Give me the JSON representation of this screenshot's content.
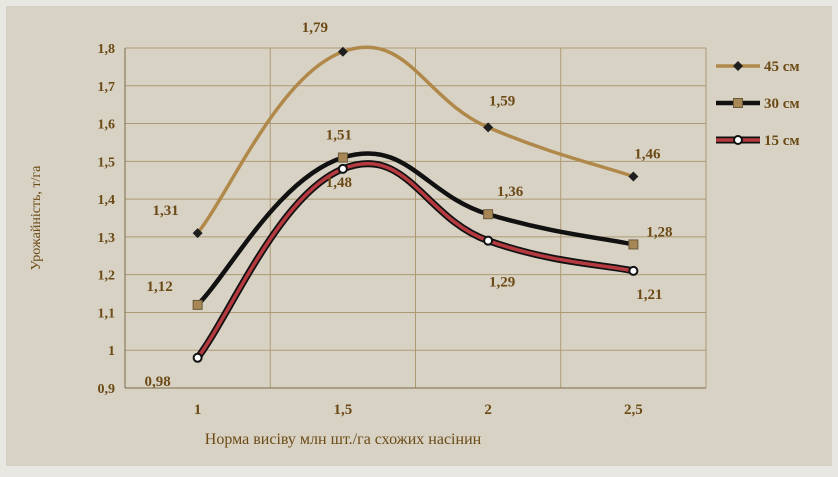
{
  "colors": {
    "plot_bg": "#d8d2c4",
    "page_bg": "#e9e7e2",
    "text": "#6b4a16",
    "grid": "#ad9a74",
    "axis": "#7e6a48"
  },
  "chart_data": {
    "type": "line",
    "title": "",
    "xlabel": "Норма висіву млн шт./га схожих насінин",
    "ylabel": "Урожайність, т/га",
    "categories": [
      "1",
      "1,5",
      "2",
      "2,5"
    ],
    "x": [
      1,
      1.5,
      2,
      2.5
    ],
    "ylim": [
      0.9,
      1.8
    ],
    "yticks": [
      "0,9",
      "1",
      "1,1",
      "1,2",
      "1,3",
      "1,4",
      "1,5",
      "1,6",
      "1,7",
      "1,8"
    ],
    "grid": true,
    "smooth": true,
    "legend_position": "right",
    "series": [
      {
        "name": "45 см",
        "values": [
          1.31,
          1.79,
          1.59,
          1.46
        ],
        "labels": [
          "1,31",
          "1,79",
          "1,59",
          "1,46"
        ],
        "color": "#b0894a",
        "marker": "diamond",
        "marker_color": "#1f1f1f"
      },
      {
        "name": "30 см",
        "values": [
          1.12,
          1.51,
          1.36,
          1.28
        ],
        "labels": [
          "1,12",
          "1,51",
          "1,36",
          "1,28"
        ],
        "color": "#111111",
        "marker": "square",
        "marker_color": "#a88757"
      },
      {
        "name": "15 см",
        "values": [
          0.98,
          1.48,
          1.29,
          1.21
        ],
        "labels": [
          "0,98",
          "1,48",
          "1,29",
          "1,21"
        ],
        "color": "#b43a40",
        "marker": "circle",
        "marker_color": "#ffffff",
        "outline_color": "#111111"
      }
    ]
  }
}
